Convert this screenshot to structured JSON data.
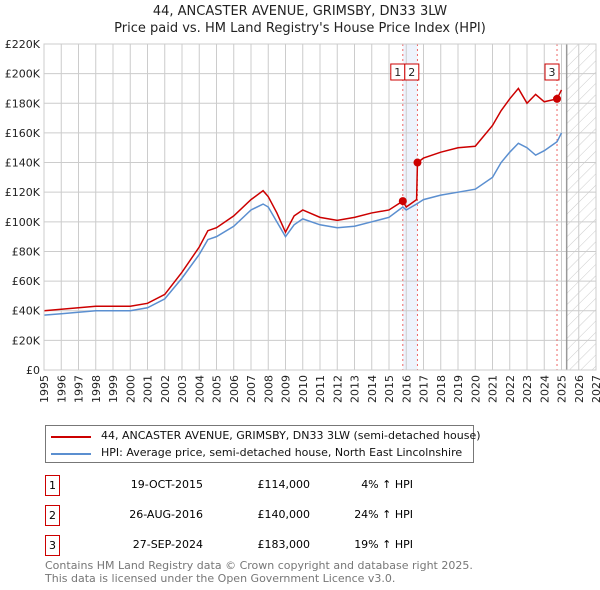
{
  "chart_data": {
    "type": "line",
    "title": "44, ANCASTER AVENUE, GRIMSBY, DN33 3LW",
    "subtitle": "Price paid vs. HM Land Registry's House Price Index (HPI)",
    "xlim": [
      1995,
      2027
    ],
    "ylim": [
      0,
      220000
    ],
    "x_ticks": [
      "1995",
      "1996",
      "1997",
      "1998",
      "1999",
      "2000",
      "2001",
      "2002",
      "2003",
      "2004",
      "2005",
      "2006",
      "2007",
      "2008",
      "2009",
      "2010",
      "2011",
      "2012",
      "2013",
      "2014",
      "2015",
      "2016",
      "2017",
      "2018",
      "2019",
      "2020",
      "2021",
      "2022",
      "2023",
      "2024",
      "2025",
      "2026",
      "2027"
    ],
    "y_ticks": [
      {
        "v": 0,
        "label": "£0"
      },
      {
        "v": 20000,
        "label": "£20K"
      },
      {
        "v": 40000,
        "label": "£40K"
      },
      {
        "v": 60000,
        "label": "£60K"
      },
      {
        "v": 80000,
        "label": "£80K"
      },
      {
        "v": 100000,
        "label": "£100K"
      },
      {
        "v": 120000,
        "label": "£120K"
      },
      {
        "v": 140000,
        "label": "£140K"
      },
      {
        "v": 160000,
        "label": "£160K"
      },
      {
        "v": 180000,
        "label": "£180K"
      },
      {
        "v": 200000,
        "label": "£200K"
      },
      {
        "v": 220000,
        "label": "£220K"
      }
    ],
    "grid": true,
    "forecast_from": 2025.3,
    "series": [
      {
        "name": "44, ANCASTER AVENUE, GRIMSBY, DN33 3LW (semi-detached house)",
        "color": "#cc0000",
        "x": [
          1995,
          1996,
          1997,
          1998,
          1999,
          2000,
          2001,
          2002,
          2003,
          2004,
          2004.5,
          2005,
          2006,
          2007,
          2007.7,
          2008,
          2008.5,
          2009,
          2009.5,
          2010,
          2011,
          2012,
          2013,
          2014,
          2015,
          2015.8,
          2016,
          2016.6,
          2016.65,
          2017,
          2018,
          2019,
          2020,
          2021,
          2021.5,
          2022,
          2022.5,
          2023,
          2023.5,
          2024,
          2024.74,
          2025
        ],
        "y": [
          40000,
          41000,
          42000,
          43000,
          43000,
          43000,
          45000,
          51000,
          66000,
          83000,
          94000,
          96000,
          104000,
          115000,
          121000,
          117000,
          106000,
          93000,
          104000,
          108000,
          103000,
          101000,
          103000,
          106000,
          108000,
          114000,
          110000,
          115000,
          140000,
          143000,
          147000,
          150000,
          151000,
          165000,
          175000,
          183000,
          190000,
          180000,
          186000,
          181000,
          183000,
          189000
        ]
      },
      {
        "name": "HPI: Average price, semi-detached house, North East Lincolnshire",
        "color": "#5b8fd0",
        "x": [
          1995,
          1996,
          1997,
          1998,
          1999,
          2000,
          2001,
          2002,
          2003,
          2004,
          2004.5,
          2005,
          2006,
          2007,
          2007.7,
          2008,
          2008.5,
          2009,
          2009.5,
          2010,
          2011,
          2012,
          2013,
          2014,
          2015,
          2015.8,
          2016,
          2016.6,
          2017,
          2018,
          2019,
          2020,
          2021,
          2021.5,
          2022,
          2022.5,
          2023,
          2023.5,
          2024,
          2024.74,
          2025
        ],
        "y": [
          37000,
          38000,
          39000,
          40000,
          40000,
          40000,
          42000,
          48000,
          62000,
          78000,
          88000,
          90000,
          97000,
          108000,
          112000,
          110000,
          100000,
          90000,
          98000,
          102000,
          98000,
          96000,
          97000,
          100000,
          103000,
          110000,
          108000,
          112000,
          115000,
          118000,
          120000,
          122000,
          130000,
          140000,
          147000,
          153000,
          150000,
          145000,
          148000,
          154000,
          160000
        ]
      }
    ],
    "sales": [
      {
        "id": "1",
        "x": 2015.8,
        "date": "19-OCT-2015",
        "value": 114000,
        "price": "£114,000",
        "hpi": "4% ↑ HPI"
      },
      {
        "id": "2",
        "x": 2016.65,
        "date": "26-AUG-2016",
        "value": 140000,
        "price": "£140,000",
        "hpi": "24% ↑ HPI"
      },
      {
        "id": "3",
        "x": 2024.74,
        "date": "27-SEP-2024",
        "value": 183000,
        "price": "£183,000",
        "hpi": "19% ↑ HPI"
      }
    ],
    "footer": [
      "Contains HM Land Registry data © Crown copyright and database right 2025.",
      "This data is licensed under the Open Government Licence v3.0."
    ]
  }
}
